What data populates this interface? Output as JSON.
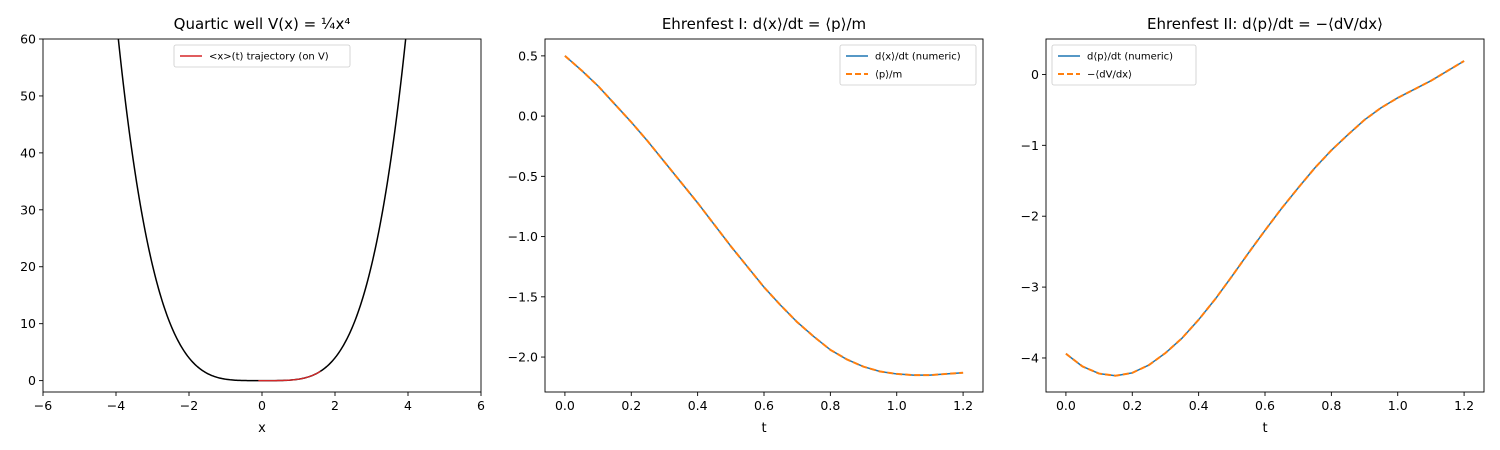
{
  "colors": {
    "potential": "#000000",
    "trajectory": "#d62728",
    "numeric": "#1f77b4",
    "analytic": "#ff7f0e"
  },
  "chart_data": [
    {
      "type": "line",
      "title": "Quartic well V(x) = ¼x⁴",
      "xlabel": "x",
      "ylabel": "",
      "xlim": [
        -6,
        6
      ],
      "ylim": [
        -2,
        60
      ],
      "xticks": [
        -6,
        -4,
        -2,
        0,
        2,
        4,
        6
      ],
      "yticks": [
        0,
        10,
        20,
        30,
        40,
        50,
        60
      ],
      "legend_position": "top-center",
      "series": [
        {
          "name": "",
          "color_key": "potential",
          "function": "quartic",
          "x_range": [
            -4.0,
            4.0
          ]
        },
        {
          "name": "<x>(t) trajectory (on V)",
          "color_key": "trajectory",
          "function": "quartic",
          "x_range": [
            -0.1,
            1.6
          ]
        }
      ]
    },
    {
      "type": "line",
      "title": "Ehrenfest I: d⟨x⟩/dt = ⟨p⟩/m",
      "xlabel": "t",
      "ylabel": "",
      "xlim": [
        -0.06,
        1.26
      ],
      "ylim": [
        -2.29,
        0.64
      ],
      "xticks": [
        0.0,
        0.2,
        0.4,
        0.6,
        0.8,
        1.0,
        1.2
      ],
      "yticks": [
        0.5,
        0.0,
        -0.5,
        -1.0,
        -1.5,
        -2.0
      ],
      "legend_position": "top-right",
      "series": [
        {
          "name": "d⟨x⟩/dt (numeric)",
          "color_key": "numeric",
          "dash": false,
          "x": [
            0.0,
            0.05,
            0.1,
            0.15,
            0.2,
            0.25,
            0.3,
            0.35,
            0.4,
            0.45,
            0.5,
            0.55,
            0.6,
            0.65,
            0.7,
            0.75,
            0.8,
            0.85,
            0.9,
            0.95,
            1.0,
            1.05,
            1.1,
            1.15,
            1.2
          ],
          "y": [
            0.5,
            0.38,
            0.25,
            0.1,
            -0.05,
            -0.21,
            -0.38,
            -0.55,
            -0.72,
            -0.9,
            -1.08,
            -1.25,
            -1.42,
            -1.57,
            -1.71,
            -1.83,
            -1.94,
            -2.02,
            -2.08,
            -2.12,
            -2.14,
            -2.15,
            -2.15,
            -2.14,
            -2.13
          ]
        },
        {
          "name": "⟨p⟩/m",
          "color_key": "analytic",
          "dash": true,
          "x": [
            0.0,
            0.05,
            0.1,
            0.15,
            0.2,
            0.25,
            0.3,
            0.35,
            0.4,
            0.45,
            0.5,
            0.55,
            0.6,
            0.65,
            0.7,
            0.75,
            0.8,
            0.85,
            0.9,
            0.95,
            1.0,
            1.05,
            1.1,
            1.15,
            1.2
          ],
          "y": [
            0.5,
            0.38,
            0.25,
            0.1,
            -0.05,
            -0.21,
            -0.38,
            -0.55,
            -0.72,
            -0.9,
            -1.08,
            -1.25,
            -1.42,
            -1.57,
            -1.71,
            -1.83,
            -1.94,
            -2.02,
            -2.08,
            -2.12,
            -2.14,
            -2.15,
            -2.15,
            -2.14,
            -2.13
          ]
        }
      ]
    },
    {
      "type": "line",
      "title": "Ehrenfest II: d⟨p⟩/dt = −⟨dV/dx⟩",
      "xlabel": "t",
      "ylabel": "",
      "xlim": [
        -0.06,
        1.26
      ],
      "ylim": [
        -4.48,
        0.5
      ],
      "xticks": [
        0.0,
        0.2,
        0.4,
        0.6,
        0.8,
        1.0,
        1.2
      ],
      "yticks": [
        0,
        -1,
        -2,
        -3,
        -4
      ],
      "legend_position": "top-left",
      "series": [
        {
          "name": "d⟨p⟩/dt (numeric)",
          "color_key": "numeric",
          "dash": false,
          "x": [
            0.0,
            0.05,
            0.1,
            0.15,
            0.2,
            0.25,
            0.3,
            0.35,
            0.4,
            0.45,
            0.5,
            0.55,
            0.6,
            0.65,
            0.7,
            0.75,
            0.8,
            0.85,
            0.9,
            0.95,
            1.0,
            1.05,
            1.1,
            1.15,
            1.2
          ],
          "y": [
            -3.94,
            -4.12,
            -4.22,
            -4.25,
            -4.21,
            -4.1,
            -3.93,
            -3.72,
            -3.46,
            -3.17,
            -2.85,
            -2.52,
            -2.2,
            -1.89,
            -1.6,
            -1.32,
            -1.07,
            -0.85,
            -0.64,
            -0.47,
            -0.33,
            -0.21,
            -0.09,
            0.05,
            0.19
          ]
        },
        {
          "name": "−⟨dV/dx⟩",
          "color_key": "analytic",
          "dash": true,
          "x": [
            0.0,
            0.05,
            0.1,
            0.15,
            0.2,
            0.25,
            0.3,
            0.35,
            0.4,
            0.45,
            0.5,
            0.55,
            0.6,
            0.65,
            0.7,
            0.75,
            0.8,
            0.85,
            0.9,
            0.95,
            1.0,
            1.05,
            1.1,
            1.15,
            1.2
          ],
          "y": [
            -3.94,
            -4.12,
            -4.22,
            -4.25,
            -4.21,
            -4.1,
            -3.93,
            -3.72,
            -3.46,
            -3.17,
            -2.85,
            -2.52,
            -2.2,
            -1.89,
            -1.6,
            -1.32,
            -1.07,
            -0.85,
            -0.64,
            -0.47,
            -0.33,
            -0.21,
            -0.09,
            0.05,
            0.19
          ]
        }
      ]
    }
  ]
}
